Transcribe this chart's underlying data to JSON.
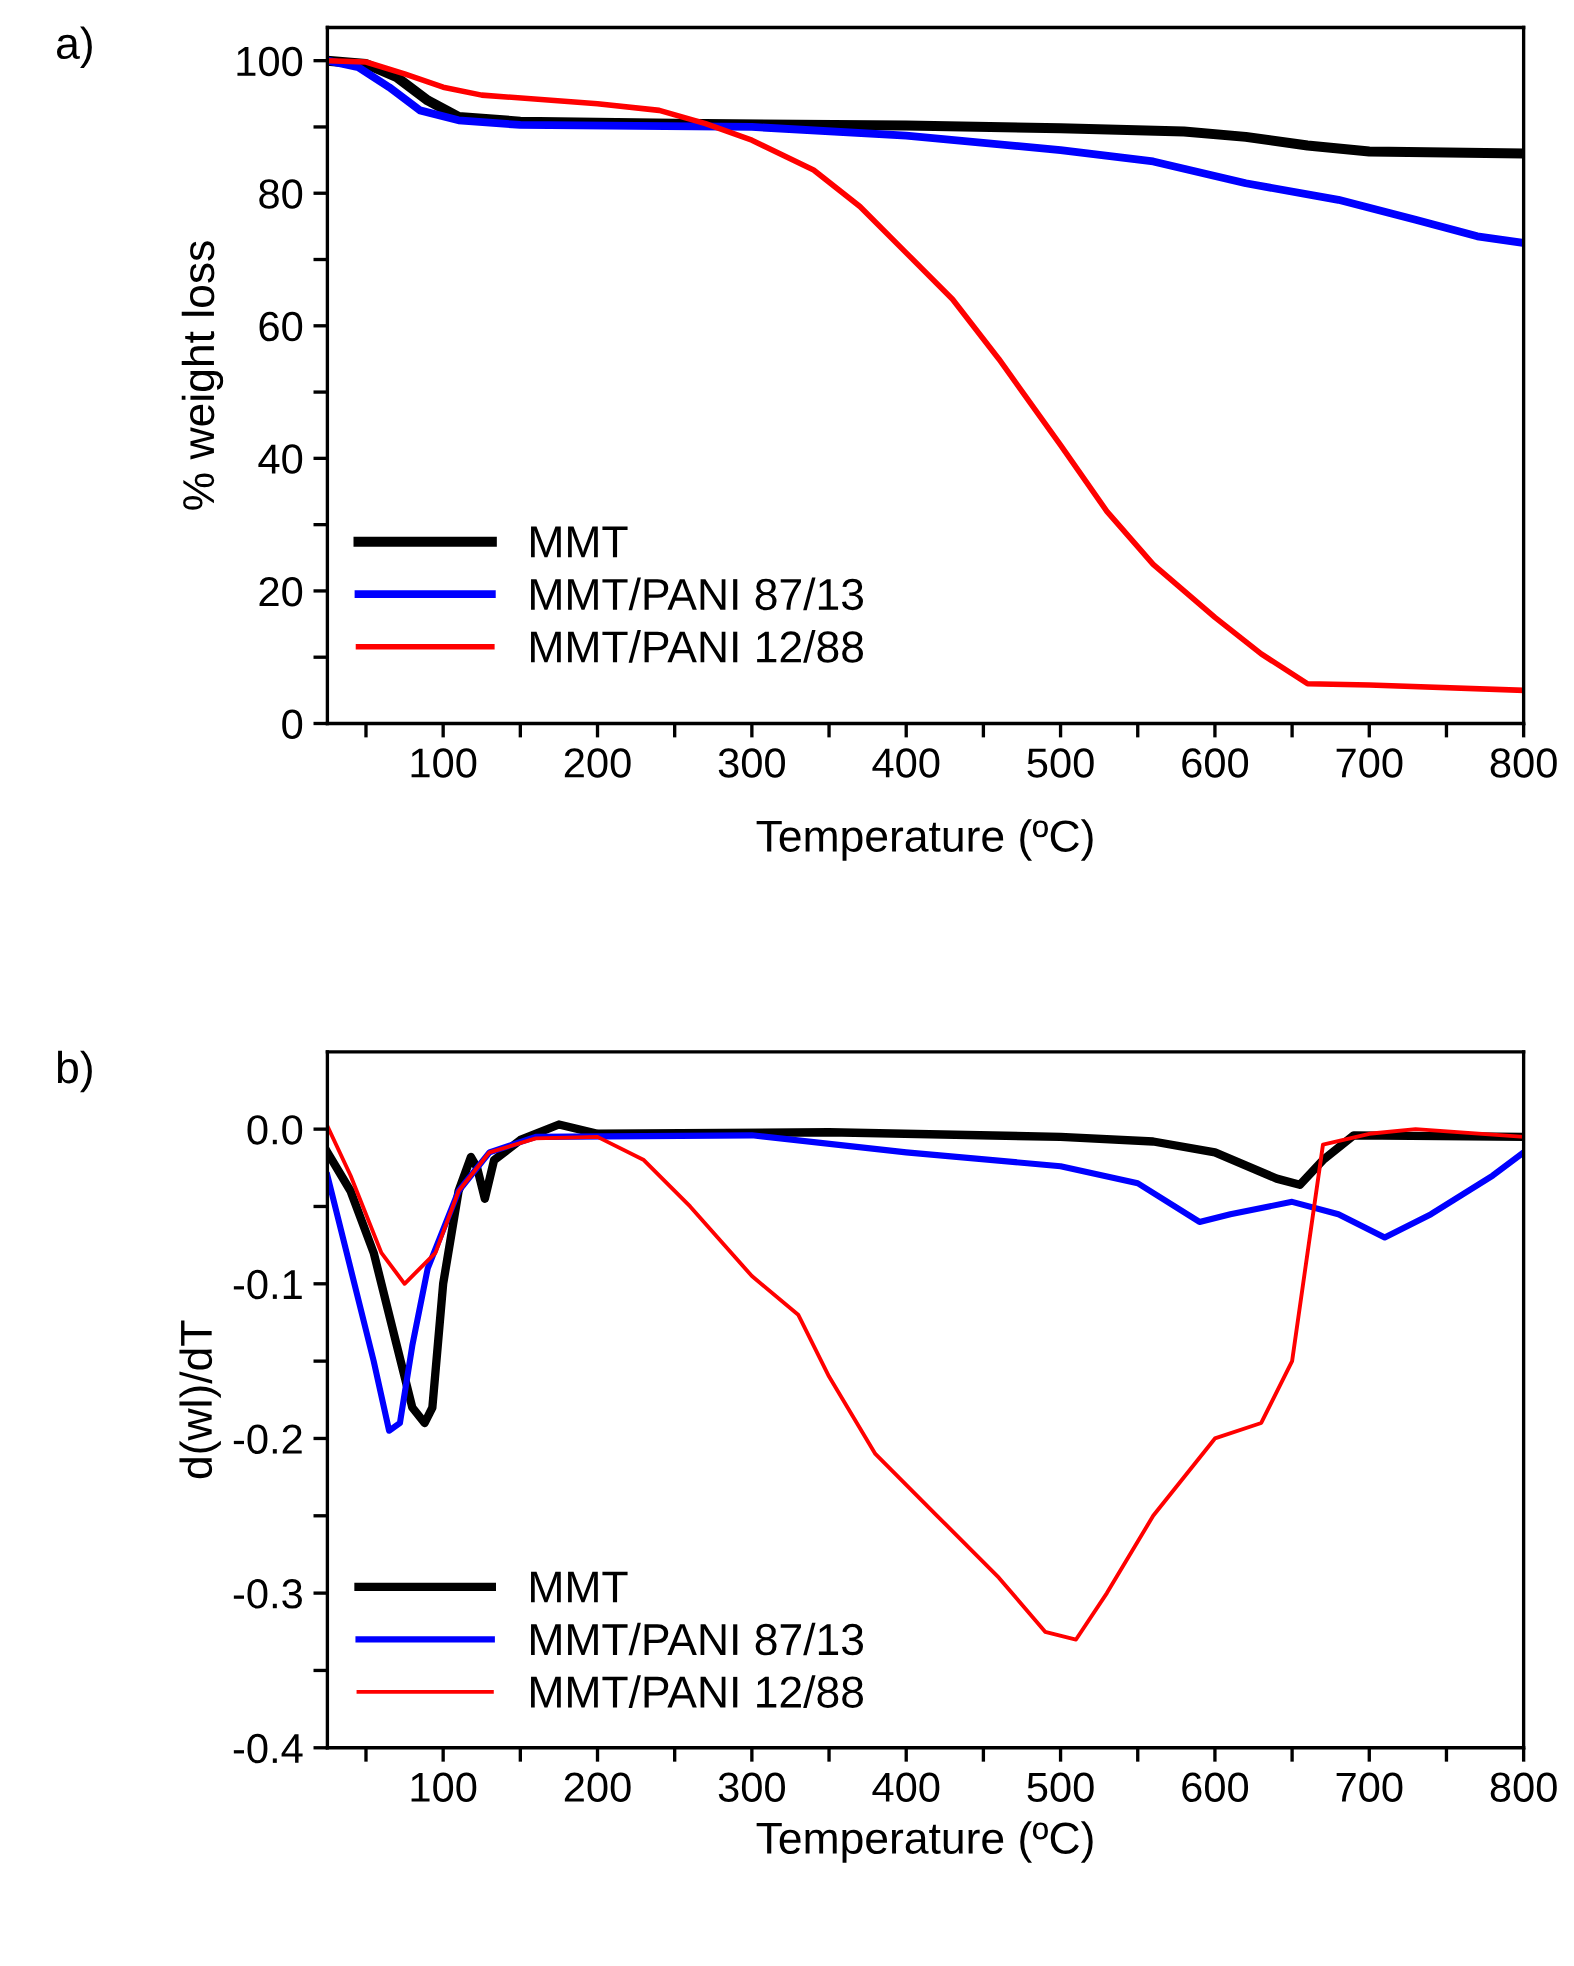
{
  "chart_data": [
    {
      "type": "line",
      "xlabel": "Temperature (ºC)",
      "ylabel": "% weight loss",
      "annotations": [
        "a)"
      ],
      "xlim": [
        25,
        800
      ],
      "ylim": [
        0,
        105
      ],
      "xticks": [
        {
          "value": 50,
          "label": null
        },
        100,
        {
          "value": 150,
          "label": null
        },
        200,
        {
          "value": 250,
          "label": null
        },
        300,
        {
          "value": 350,
          "label": null
        },
        400,
        {
          "value": 450,
          "label": null
        },
        500,
        {
          "value": 550,
          "label": null
        },
        600,
        {
          "value": 650,
          "label": null
        },
        700,
        {
          "value": 750,
          "label": null
        },
        800
      ],
      "yticks": [
        0,
        {
          "value": 10,
          "label": null
        },
        20,
        {
          "value": 30,
          "label": null
        },
        40,
        {
          "value": 50,
          "label": null
        },
        60,
        {
          "value": 70,
          "label": null
        },
        80,
        {
          "value": 90,
          "label": null
        },
        100
      ],
      "grid": false,
      "legend": "bottom left",
      "line_style": "solid",
      "marker": "none",
      "series": [
        {
          "name": "MMT",
          "color": "#000000",
          "x": [
            25,
            50,
            70,
            90,
            110,
            150,
            250,
            400,
            500,
            580,
            620,
            660,
            700,
            800
          ],
          "values": [
            100,
            99.5,
            97.5,
            94,
            91.5,
            90.8,
            90.5,
            90.2,
            89.8,
            89.3,
            88.5,
            87.2,
            86.3,
            86
          ]
        },
        {
          "name": "MMT/PANI 87/13",
          "color": "#0000ff",
          "x": [
            25,
            45,
            65,
            85,
            110,
            150,
            300,
            400,
            500,
            560,
            620,
            680,
            730,
            770,
            800
          ],
          "values": [
            100,
            99,
            96,
            92.5,
            91,
            90.3,
            90,
            88.7,
            86.5,
            84.8,
            81.5,
            79,
            76,
            73.5,
            72.5
          ]
        },
        {
          "name": "MMT/PANI 12/88",
          "color": "#ff0000",
          "x": [
            25,
            50,
            75,
            100,
            125,
            200,
            240,
            270,
            300,
            340,
            370,
            400,
            430,
            460,
            480,
            500,
            530,
            560,
            600,
            630,
            660,
            700,
            800
          ],
          "values": [
            100,
            99.8,
            98,
            96,
            94.8,
            93.5,
            92.5,
            90.5,
            88,
            83.5,
            78,
            71,
            64,
            55,
            48.5,
            42,
            32,
            24,
            16,
            10.5,
            6,
            5.8,
            5
          ]
        }
      ]
    },
    {
      "type": "line",
      "xlabel": "Temperature (ºC)",
      "ylabel": "d(wl)/dT",
      "annotations": [
        "b)"
      ],
      "xlim": [
        25,
        800
      ],
      "ylim": [
        -0.4,
        0.05
      ],
      "xticks": [
        {
          "value": 50,
          "label": null
        },
        100,
        {
          "value": 150,
          "label": null
        },
        200,
        {
          "value": 250,
          "label": null
        },
        300,
        {
          "value": 350,
          "label": null
        },
        400,
        {
          "value": 450,
          "label": null
        },
        500,
        {
          "value": 550,
          "label": null
        },
        600,
        {
          "value": 650,
          "label": null
        },
        700,
        {
          "value": 750,
          "label": null
        },
        800
      ],
      "yticks": [
        {
          "value": -0.4,
          "label": "-0.4"
        },
        {
          "value": -0.35,
          "label": null
        },
        {
          "value": -0.3,
          "label": "-0.3"
        },
        {
          "value": -0.25,
          "label": null
        },
        {
          "value": -0.2,
          "label": "-0.2"
        },
        {
          "value": -0.15,
          "label": null
        },
        {
          "value": -0.1,
          "label": "-0.1"
        },
        {
          "value": -0.05,
          "label": null
        },
        {
          "value": 0,
          "label": "0.0"
        }
      ],
      "grid": false,
      "legend": "bottom left",
      "line_style": "solid",
      "marker": "none",
      "series": [
        {
          "name": "MMT",
          "color": "#000000",
          "x": [
            25,
            40,
            55,
            70,
            80,
            88,
            93,
            100,
            110,
            118,
            122,
            127,
            133,
            150,
            175,
            200,
            350,
            500,
            560,
            600,
            640,
            655,
            670,
            690,
            800
          ],
          "values": [
            -0.015,
            -0.04,
            -0.08,
            -0.14,
            -0.18,
            -0.19,
            -0.18,
            -0.1,
            -0.04,
            -0.018,
            -0.025,
            -0.045,
            -0.02,
            -0.007,
            0.003,
            -0.003,
            -0.002,
            -0.005,
            -0.008,
            -0.015,
            -0.032,
            -0.036,
            -0.02,
            -0.004,
            -0.005
          ]
        },
        {
          "name": "MMT/PANI 87/13",
          "color": "#0000ff",
          "x": [
            25,
            40,
            55,
            65,
            72,
            80,
            90,
            110,
            130,
            160,
            300,
            400,
            500,
            550,
            590,
            610,
            650,
            680,
            710,
            740,
            780,
            800
          ],
          "values": [
            -0.03,
            -0.09,
            -0.15,
            -0.195,
            -0.19,
            -0.14,
            -0.09,
            -0.04,
            -0.015,
            -0.005,
            -0.004,
            -0.015,
            -0.024,
            -0.035,
            -0.06,
            -0.055,
            -0.047,
            -0.055,
            -0.07,
            -0.055,
            -0.03,
            -0.015
          ]
        },
        {
          "name": "MMT/PANI 12/88",
          "color": "#ff0000",
          "x": [
            25,
            40,
            60,
            75,
            95,
            110,
            130,
            160,
            200,
            230,
            260,
            300,
            330,
            350,
            380,
            420,
            460,
            490,
            510,
            530,
            560,
            600,
            630,
            650,
            660,
            670,
            700,
            730,
            800
          ],
          "values": [
            0.002,
            -0.03,
            -0.08,
            -0.1,
            -0.08,
            -0.04,
            -0.015,
            -0.006,
            -0.005,
            -0.02,
            -0.05,
            -0.095,
            -0.12,
            -0.16,
            -0.21,
            -0.25,
            -0.29,
            -0.325,
            -0.33,
            -0.3,
            -0.25,
            -0.2,
            -0.19,
            -0.15,
            -0.08,
            -0.01,
            -0.003,
            0.0,
            -0.005
          ]
        }
      ]
    }
  ]
}
